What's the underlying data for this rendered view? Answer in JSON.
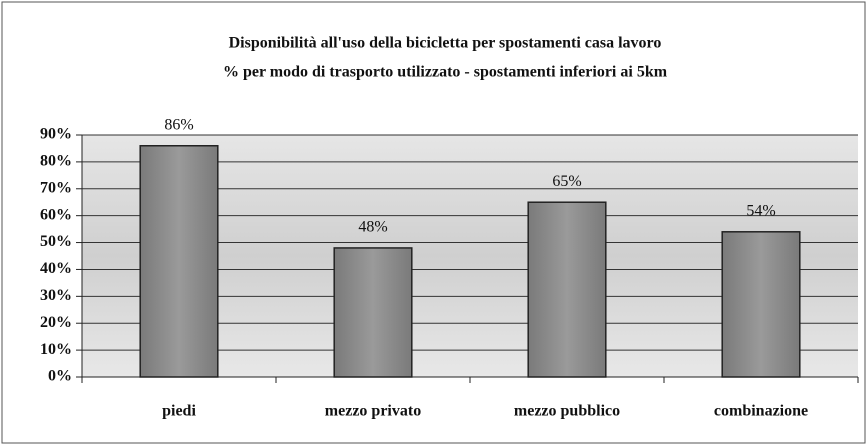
{
  "chart_data": {
    "type": "bar",
    "title": "Disponibilità all'uso della bicicletta per spostamenti casa lavoro",
    "subtitle": "% per modo di trasporto utilizzato - spostamenti inferiori ai 5km",
    "categories": [
      "piedi",
      "mezzo privato",
      "mezzo pubblico",
      "combinazione"
    ],
    "values": [
      86,
      48,
      65,
      54
    ],
    "value_labels": [
      "86%",
      "48%",
      "65%",
      "54%"
    ],
    "color": "#8c8c8c",
    "ylim": [
      0,
      90
    ],
    "yticks": [
      {
        "value": 0,
        "label": "0%"
      },
      {
        "value": 10,
        "label": "10%"
      },
      {
        "value": 20,
        "label": "20%"
      },
      {
        "value": 30,
        "label": "30%"
      },
      {
        "value": 40,
        "label": "40%"
      },
      {
        "value": 50,
        "label": "50%"
      },
      {
        "value": 60,
        "label": "60%"
      },
      {
        "value": 70,
        "label": "70%"
      },
      {
        "value": 80,
        "label": "80%"
      },
      {
        "value": 90,
        "label": "90%"
      }
    ],
    "grid": true
  }
}
